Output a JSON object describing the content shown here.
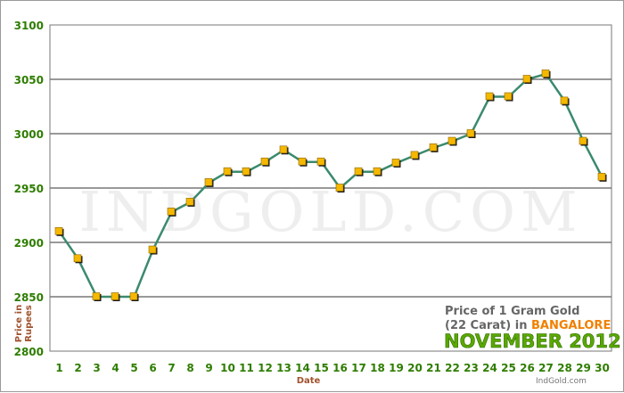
{
  "chart_data": {
    "type": "line",
    "xlabel": "Date",
    "ylabel_lines": [
      "Price in",
      "Rupees"
    ],
    "categories": [
      "1",
      "2",
      "3",
      "4",
      "5",
      "6",
      "7",
      "8",
      "9",
      "10",
      "11",
      "12",
      "13",
      "14",
      "15",
      "16",
      "17",
      "18",
      "19",
      "20",
      "21",
      "22",
      "23",
      "24",
      "25",
      "26",
      "27",
      "28",
      "29",
      "30"
    ],
    "series": [
      {
        "values": [
          2910,
          2885,
          2850,
          2850,
          2850,
          2893,
          2928,
          2937,
          2955,
          2965,
          2965,
          2974,
          2985,
          2974,
          2974,
          2950,
          2965,
          2965,
          2973,
          2980,
          2987,
          2993,
          3000,
          3034,
          3034,
          3050,
          3055,
          3030,
          2993,
          2960
        ]
      }
    ],
    "ylim": [
      2800,
      3100
    ],
    "yticks": [
      2800,
      2850,
      2900,
      2950,
      3000,
      3050,
      3100
    ],
    "grid": "horizontal",
    "annotation": {
      "line1": "Price of 1 Gram Gold",
      "line2_prefix": "(22 Carat) in ",
      "city": "BANGALORE",
      "month_year": "NOVEMBER 2012"
    },
    "watermark": "INDGOLD.COM",
    "source": "IndGold.com"
  },
  "colors": {
    "line": "#3b8a6e",
    "marker_fill": "#f5b800",
    "marker_shadow": "#1a1a1a",
    "axis_label": "#2e7d00",
    "axis_title": "#a0522d",
    "city": "#f08000",
    "month": "#5aa800",
    "annotation_text": "#666666",
    "watermark": "#eeeeee"
  }
}
